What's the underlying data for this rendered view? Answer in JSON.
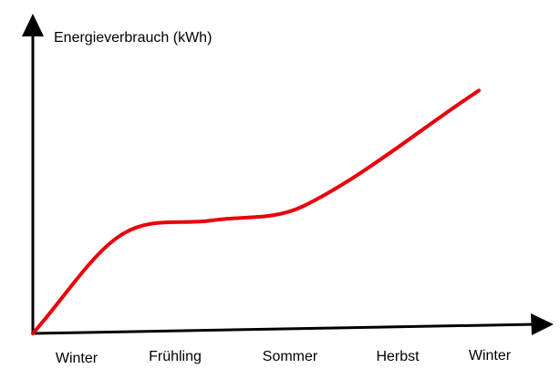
{
  "chart_data": {
    "type": "line",
    "title": "",
    "ylabel": "Energieverbrauch (kWh)",
    "xlabel": "",
    "categories": [
      "Winter",
      "Frühling",
      "Sommer",
      "Herbst",
      "Winter"
    ],
    "series": [
      {
        "values": [
          0,
          4.1,
          4.7,
          5.3,
          10.1
        ],
        "color": "#e8000b"
      }
    ],
    "ylim": [
      0,
      12.5
    ],
    "grid": false,
    "axis_style": "arrows",
    "curve": "smooth"
  }
}
